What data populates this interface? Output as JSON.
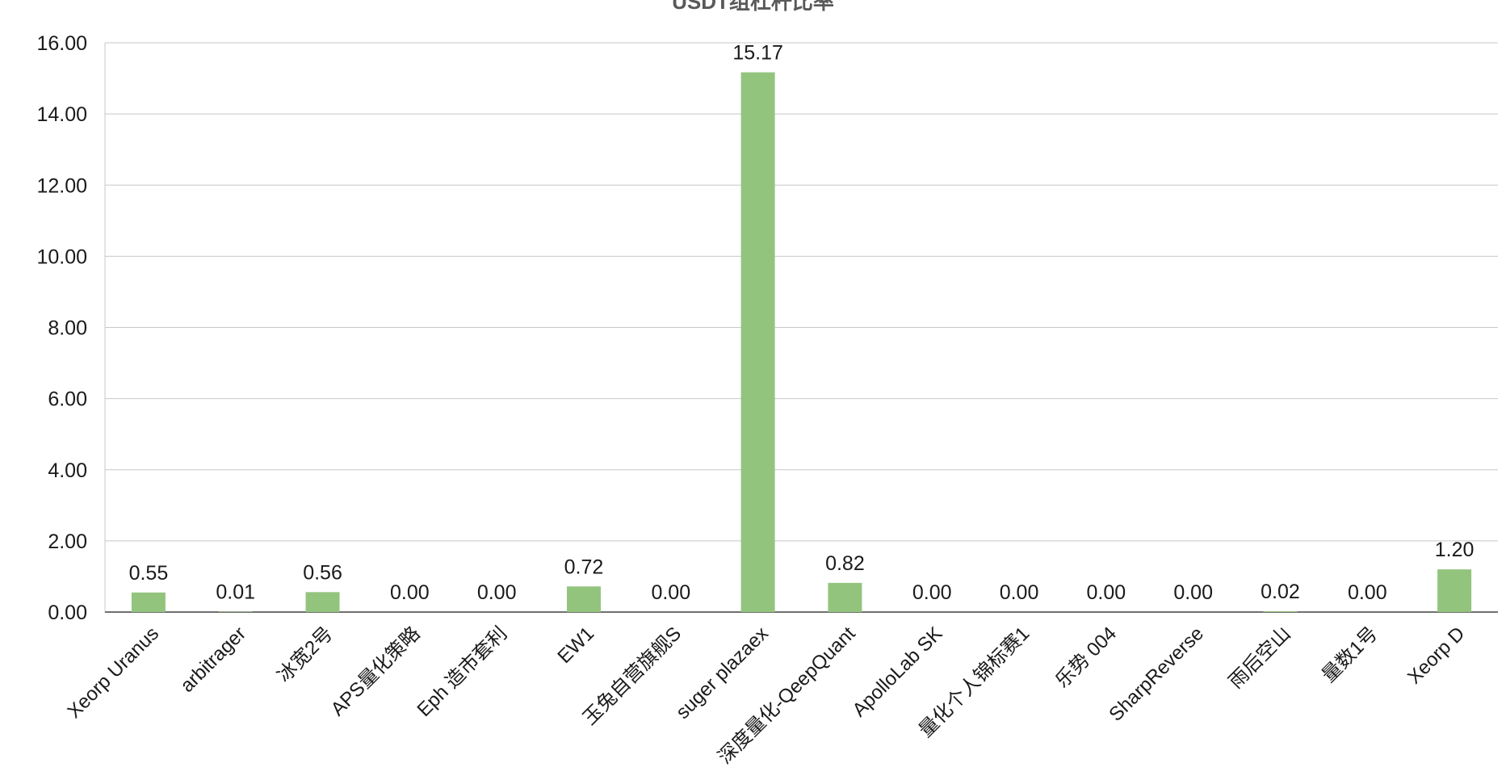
{
  "chart_data": {
    "type": "bar",
    "title": "USDT组杠杆比率",
    "xlabel": "",
    "ylabel": "",
    "ylim": [
      0,
      16
    ],
    "ytick_step": 2,
    "ytick_labels": [
      "0.00",
      "2.00",
      "4.00",
      "6.00",
      "8.00",
      "10.00",
      "12.00",
      "14.00",
      "16.00"
    ],
    "grid": true,
    "legend": "none",
    "bar_color": "#93c47d",
    "categories": [
      "Xeorp Uranus",
      "arbitrager",
      "冰宽2号",
      "APS量化策略",
      "Eph 造市套利",
      "EW1",
      "玉兔自营旗舰S",
      "suger plazaex",
      "深度量化-QeepQuant",
      "ApolloLab SK",
      "量化个人锦标赛1",
      "乐势 004",
      "SharpReverse",
      "雨后空山",
      "量数1号",
      "Xeorp D"
    ],
    "values": [
      0.55,
      0.01,
      0.56,
      0.0,
      0.0,
      0.72,
      0.0,
      15.17,
      0.82,
      0.0,
      0.0,
      0.0,
      0.0,
      0.02,
      0.0,
      1.2
    ],
    "data_labels": [
      "0.55",
      "0.01",
      "0.56",
      "0.00",
      "0.00",
      "0.72",
      "0.00",
      "15.17",
      "0.82",
      "0.00",
      "0.00",
      "0.00",
      "0.00",
      "0.02",
      "0.00",
      "1.20"
    ]
  }
}
